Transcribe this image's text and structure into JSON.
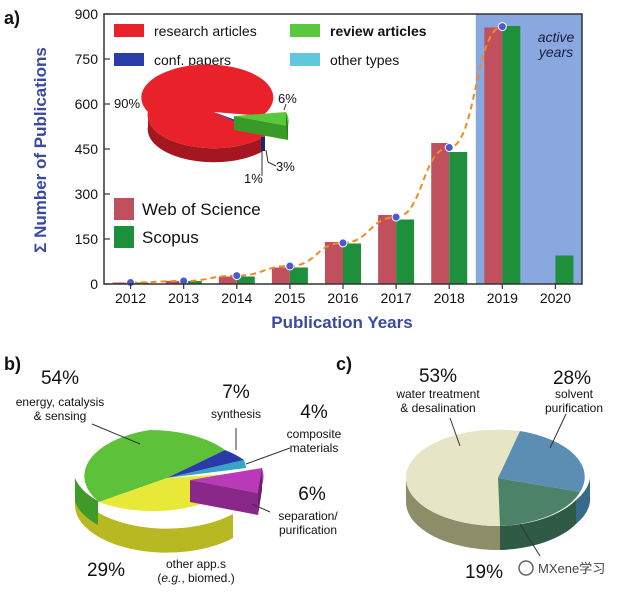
{
  "chart_data": [
    {
      "type": "bar",
      "panel_label": "a)",
      "ylabel": "Σ Number of Publications",
      "xlabel": "Publication Years",
      "ylim": [
        0,
        900
      ],
      "yticks": [
        "0",
        "150",
        "300",
        "450",
        "600",
        "750",
        "900"
      ],
      "categories": [
        "2012",
        "2013",
        "2014",
        "2015",
        "2016",
        "2017",
        "2018",
        "2019",
        "2020"
      ],
      "series": [
        {
          "name": "Web of Science",
          "color": "#c0505e",
          "values": [
            5,
            10,
            25,
            55,
            140,
            230,
            470,
            855,
            null
          ]
        },
        {
          "name": "Scopus",
          "color": "#1e8f3a",
          "values": [
            5,
            10,
            25,
            55,
            135,
            215,
            440,
            860,
            95
          ]
        }
      ],
      "trend_points": [
        5,
        10,
        28,
        60,
        137,
        223,
        455,
        858
      ],
      "trend_color": "#f08c1e",
      "shaded_region": {
        "label_line1": "active",
        "label_line2": "years",
        "from": "2019",
        "to": "2020",
        "color": "#8aa8e0"
      },
      "inset_pie": {
        "legend": [
          {
            "name": "research articles",
            "color": "#e8212a",
            "bold": false
          },
          {
            "name": "review articles",
            "color": "#5ac83c",
            "bold": true
          },
          {
            "name": "conf. papers",
            "color": "#2a3ca8",
            "bold": false
          },
          {
            "name": "other types",
            "color": "#5fc8dc",
            "bold": false
          }
        ],
        "slices": [
          {
            "label": "90%",
            "value": 90,
            "color": "#e8212a"
          },
          {
            "label": "6%",
            "value": 6,
            "color": "#5ac83c"
          },
          {
            "label": "3%",
            "value": 3,
            "color": "#2a3ca8"
          },
          {
            "label": "1%",
            "value": 1,
            "color": "#5fc8dc"
          }
        ]
      }
    },
    {
      "type": "pie",
      "panel_label": "b)",
      "slices": [
        {
          "label": "54%",
          "caption": [
            "energy, catalysis",
            "& sensing"
          ],
          "value": 54,
          "color": "#5dc13a",
          "side": "#3f9a28"
        },
        {
          "label": "7%",
          "caption": [
            "synthesis"
          ],
          "value": 7,
          "color": "#2a3aa8",
          "side": "#1c2880"
        },
        {
          "label": "4%",
          "caption": [
            "composite",
            "materials"
          ],
          "value": 4,
          "color": "#36a4c4",
          "side": "#247d98"
        },
        {
          "label": "6%",
          "caption": [
            "separation/",
            "purification"
          ],
          "value": 6,
          "color": "#b83ab8",
          "side": "#8a288a"
        },
        {
          "label": "29%",
          "caption": [
            "other app.s",
            "(e.g., biomed.)"
          ],
          "value": 29,
          "color": "#e8e838",
          "side": "#b8b822"
        }
      ]
    },
    {
      "type": "pie",
      "panel_label": "c)",
      "slices": [
        {
          "label": "53%",
          "caption": [
            "water treatment",
            "& desalination"
          ],
          "value": 53,
          "color": "#e6e6c6",
          "side": "#8d8d6a"
        },
        {
          "label": "28%",
          "caption": [
            "solvent",
            "purification"
          ],
          "value": 28,
          "color": "#5b8eb2",
          "side": "#3a6a8a"
        },
        {
          "label": "19%",
          "caption": [],
          "value": 19,
          "color": "#4c8268",
          "side": "#2f5a46"
        }
      ]
    }
  ],
  "watermark": "MXene学习"
}
